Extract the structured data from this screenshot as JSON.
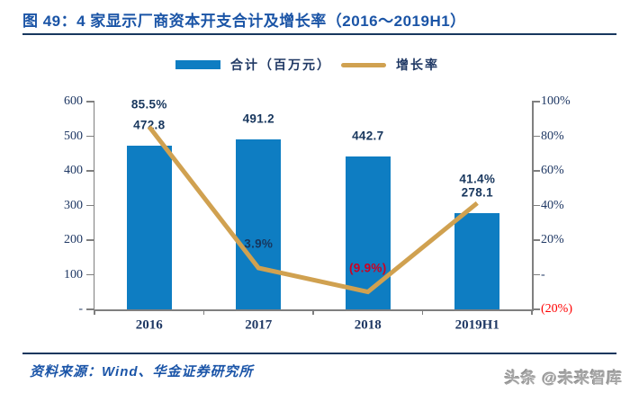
{
  "title": "图 49：4 家显示厂商资本开支合计及增长率（2016～2019H1）",
  "legend": {
    "bar_label": "合计（百万元）",
    "line_label": "增长率"
  },
  "footer": {
    "source": "资料来源：Wind、华金证券研究所",
    "watermark": "头条 @未来智库"
  },
  "colors": {
    "bar_blue": "#0e7dc2",
    "line_gold": "#d0a150",
    "label_navy": "#1f3864",
    "title_blue": "#1a54a6",
    "rule_navy": "#17375e",
    "negative_red": "#ff0000",
    "axis_gray": "#7f7f7f"
  },
  "chart_data": {
    "type": "bar",
    "subtype": "bar+line combo",
    "title": "4 家显示厂商资本开支合计及增长率（2016～2019H1）",
    "categories": [
      "2016",
      "2017",
      "2018",
      "2019H1"
    ],
    "series": [
      {
        "name": "合计（百万元）",
        "type": "bar",
        "axis": "left",
        "values": [
          472.8,
          491.2,
          442.7,
          278.1
        ],
        "labels": [
          "472.8",
          "491.2",
          "442.7",
          "278.1"
        ]
      },
      {
        "name": "增长率",
        "type": "line",
        "axis": "right",
        "values": [
          85.5,
          3.9,
          -9.9,
          41.4
        ],
        "labels": [
          "85.5%",
          "3.9%",
          "(9.9%)",
          "41.4%"
        ]
      }
    ],
    "left_axis": {
      "min": 0,
      "max": 600,
      "tick_values": [
        600,
        500,
        400,
        300,
        200,
        100,
        0
      ],
      "tick_labels": [
        "600",
        "500",
        "400",
        "300",
        "200",
        "100",
        "-"
      ]
    },
    "right_axis": {
      "min": -20,
      "max": 100,
      "tick_values": [
        100,
        80,
        60,
        40,
        20,
        0,
        -20
      ],
      "tick_labels": [
        "100%",
        "80%",
        "60%",
        "40%",
        "20%",
        "-",
        "(20%)"
      ]
    },
    "grid": false,
    "legend_position": "top"
  }
}
